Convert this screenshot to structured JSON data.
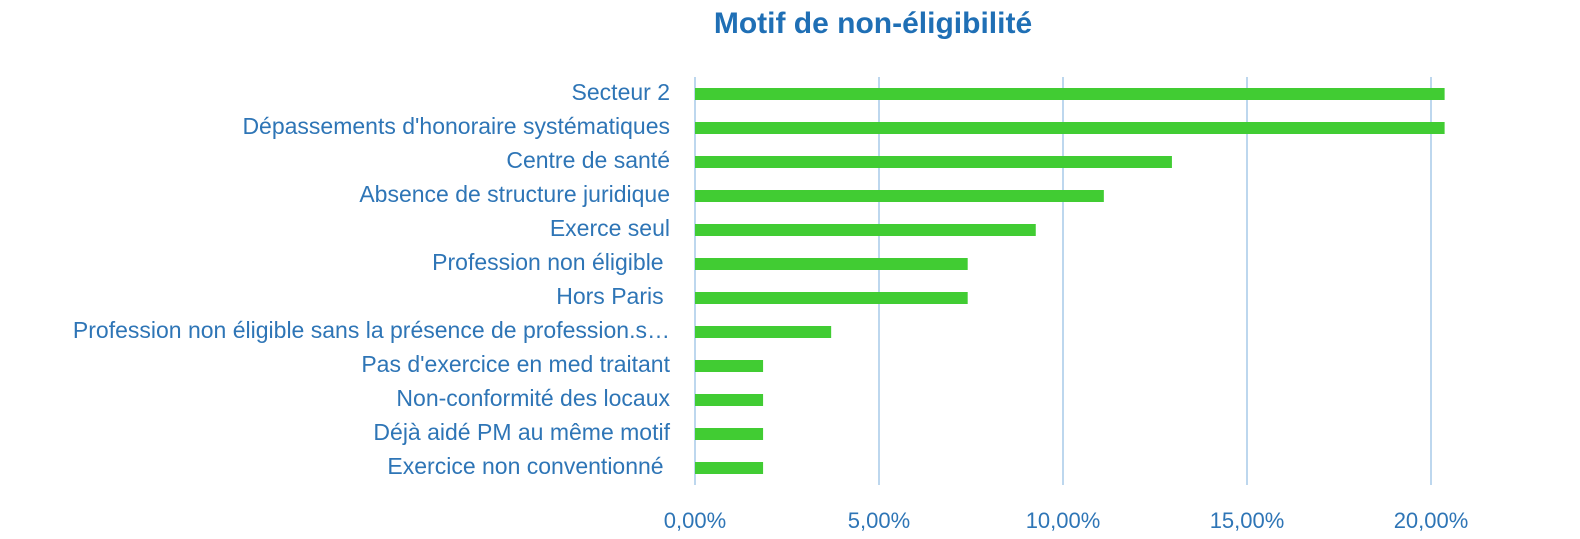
{
  "chart_data": {
    "type": "bar",
    "orientation": "horizontal",
    "title": "Motif de non-éligibilité",
    "categories": [
      "Secteur 2",
      "Dépassements d'honoraire systématiques",
      "Centre de santé",
      "Absence de structure juridique",
      "Exerce seul",
      "Profession non éligible ",
      "Hors Paris ",
      "Profession non éligible sans la présence de profession.s…",
      "Pas d'exercice en med traitant",
      "Non-conformité des locaux",
      "Déjà aidé PM au même motif",
      "Exercice non conventionné "
    ],
    "values": [
      20.37,
      20.37,
      12.96,
      11.11,
      9.26,
      7.41,
      7.41,
      3.7,
      1.85,
      1.85,
      1.85,
      1.85
    ],
    "color": "#41cc33",
    "xlim": [
      0,
      22.5
    ],
    "xticks": [
      {
        "value": 0,
        "label": "0,00%"
      },
      {
        "value": 5,
        "label": "5,00%"
      },
      {
        "value": 10,
        "label": "10,00%"
      },
      {
        "value": 15,
        "label": "15,00%"
      },
      {
        "value": 20,
        "label": "20,00%"
      }
    ],
    "grid": true
  }
}
